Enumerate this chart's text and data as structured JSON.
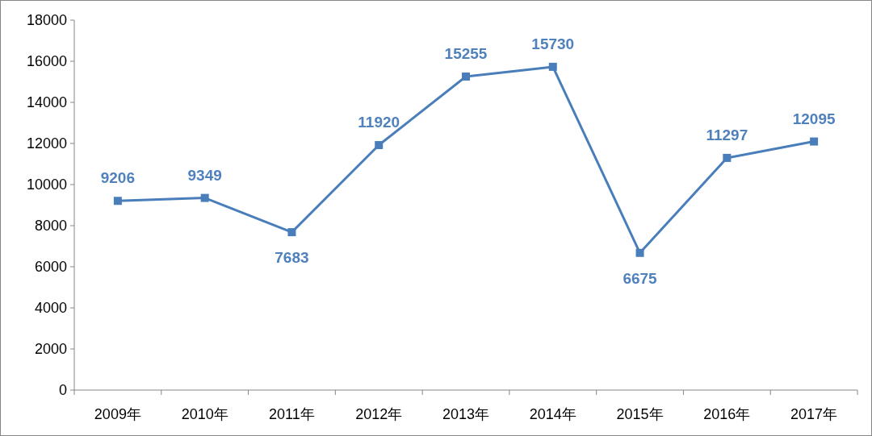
{
  "chart_data": {
    "type": "line",
    "categories": [
      "2009年",
      "2010年",
      "2011年",
      "2012年",
      "2013年",
      "2014年",
      "2015年",
      "2016年",
      "2017年"
    ],
    "series": [
      {
        "color": "#4a7ebb",
        "values": [
          9206,
          9349,
          7683,
          11920,
          15255,
          15730,
          6675,
          11297,
          12095
        ]
      }
    ],
    "ylim": [
      0,
      18000
    ],
    "yticks": [
      0,
      2000,
      4000,
      6000,
      8000,
      10000,
      12000,
      14000,
      16000,
      18000
    ],
    "data_labels": true,
    "marker": "square",
    "line_style": "solid",
    "grid": false
  }
}
